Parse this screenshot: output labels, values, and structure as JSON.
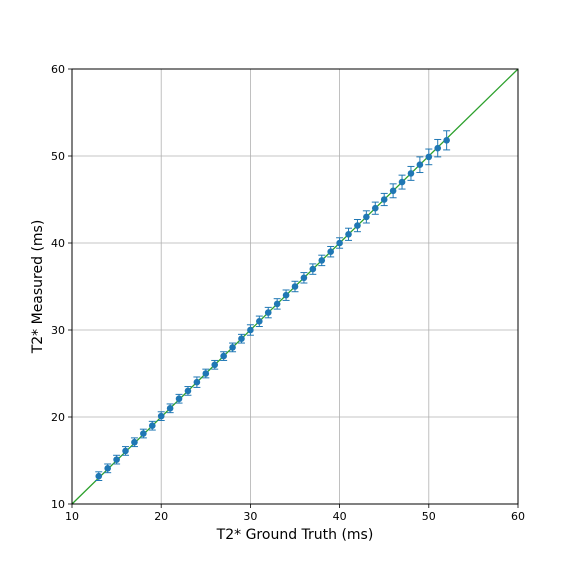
{
  "chart_data": {
    "type": "scatter",
    "title": "",
    "xlabel": "T2* Ground Truth (ms)",
    "ylabel": "T2* Measured (ms)",
    "xlim": [
      10,
      60
    ],
    "ylim": [
      10,
      60
    ],
    "xticks": [
      10,
      20,
      30,
      40,
      50,
      60
    ],
    "yticks": [
      10,
      20,
      30,
      40,
      50,
      60
    ],
    "grid": true,
    "marker_color": "#1f77b4",
    "identity_line_color": "#2ca02c",
    "identity_line": [
      [
        10,
        10
      ],
      [
        60,
        60
      ]
    ],
    "points": [
      {
        "x": 13,
        "y": 13.2,
        "err": 0.5
      },
      {
        "x": 14,
        "y": 14.1,
        "err": 0.5
      },
      {
        "x": 15,
        "y": 15.1,
        "err": 0.5
      },
      {
        "x": 16,
        "y": 16.1,
        "err": 0.5
      },
      {
        "x": 17,
        "y": 17.1,
        "err": 0.5
      },
      {
        "x": 18,
        "y": 18.1,
        "err": 0.5
      },
      {
        "x": 19,
        "y": 19.0,
        "err": 0.5
      },
      {
        "x": 20,
        "y": 20.1,
        "err": 0.5
      },
      {
        "x": 21,
        "y": 21.0,
        "err": 0.5
      },
      {
        "x": 22,
        "y": 22.1,
        "err": 0.5
      },
      {
        "x": 23,
        "y": 23.0,
        "err": 0.5
      },
      {
        "x": 24,
        "y": 24.0,
        "err": 0.6
      },
      {
        "x": 25,
        "y": 25.0,
        "err": 0.5
      },
      {
        "x": 26,
        "y": 26.0,
        "err": 0.5
      },
      {
        "x": 27,
        "y": 27.0,
        "err": 0.5
      },
      {
        "x": 28,
        "y": 28.0,
        "err": 0.5
      },
      {
        "x": 29,
        "y": 29.0,
        "err": 0.5
      },
      {
        "x": 30,
        "y": 30.0,
        "err": 0.6
      },
      {
        "x": 31,
        "y": 31.0,
        "err": 0.6
      },
      {
        "x": 32,
        "y": 32.0,
        "err": 0.6
      },
      {
        "x": 33,
        "y": 33.0,
        "err": 0.6
      },
      {
        "x": 34,
        "y": 34.0,
        "err": 0.6
      },
      {
        "x": 35,
        "y": 35.0,
        "err": 0.6
      },
      {
        "x": 36,
        "y": 36.0,
        "err": 0.6
      },
      {
        "x": 37,
        "y": 37.0,
        "err": 0.6
      },
      {
        "x": 38,
        "y": 38.0,
        "err": 0.6
      },
      {
        "x": 39,
        "y": 39.0,
        "err": 0.6
      },
      {
        "x": 40,
        "y": 40.0,
        "err": 0.6
      },
      {
        "x": 41,
        "y": 41.0,
        "err": 0.7
      },
      {
        "x": 42,
        "y": 42.0,
        "err": 0.7
      },
      {
        "x": 43,
        "y": 43.0,
        "err": 0.7
      },
      {
        "x": 44,
        "y": 44.0,
        "err": 0.7
      },
      {
        "x": 45,
        "y": 45.0,
        "err": 0.7
      },
      {
        "x": 46,
        "y": 46.0,
        "err": 0.8
      },
      {
        "x": 47,
        "y": 47.0,
        "err": 0.8
      },
      {
        "x": 48,
        "y": 48.0,
        "err": 0.8
      },
      {
        "x": 49,
        "y": 49.0,
        "err": 0.9
      },
      {
        "x": 50,
        "y": 49.9,
        "err": 0.9
      },
      {
        "x": 51,
        "y": 50.9,
        "err": 1.0
      },
      {
        "x": 52,
        "y": 51.8,
        "err": 1.1
      }
    ]
  }
}
